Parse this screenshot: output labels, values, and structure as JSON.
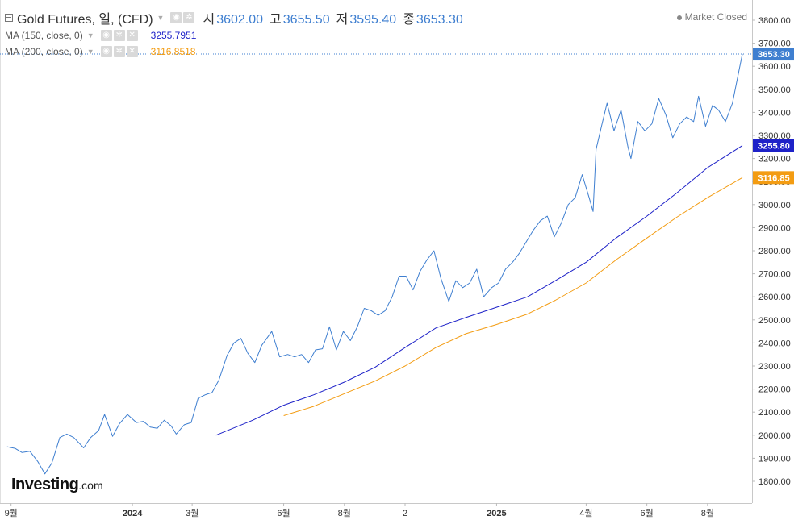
{
  "header": {
    "title": "Gold Futures, 일, (CFD)",
    "ohlc": [
      {
        "label": "시",
        "value": "3602.00"
      },
      {
        "label": "고",
        "value": "3655.50"
      },
      {
        "label": "저",
        "value": "3595.40"
      },
      {
        "label": "종",
        "value": "3653.30"
      }
    ],
    "market_status": "Market Closed",
    "indicators": [
      {
        "label": "MA (150, close, 0)",
        "value": "3255.7951",
        "color": "#1e22c8"
      },
      {
        "label": "MA (200, close, 0)",
        "value": "3116.8518",
        "color": "#f39c12"
      }
    ]
  },
  "brand": {
    "main": "Investing",
    "suffix": ".com"
  },
  "icons": {
    "collapse": "collapse-icon",
    "caret": "caret-down-icon",
    "visibility": "eye-icon",
    "settings": "gear-icon",
    "remove": "close-icon",
    "status": "status-dot-icon"
  },
  "chart_data": {
    "type": "line",
    "ylim": [
      1740,
      3870
    ],
    "y_ticks": [
      1800,
      1900,
      2000,
      2100,
      2200,
      2300,
      2400,
      2500,
      2600,
      2700,
      2800,
      2900,
      3000,
      3100,
      3200,
      3300,
      3400,
      3500,
      3600,
      3700,
      3800
    ],
    "x_ticks": [
      {
        "label": "9월",
        "date": "2023-09-01"
      },
      {
        "label": "2024",
        "date": "2024-01-01"
      },
      {
        "label": "3월",
        "date": "2024-03-01"
      },
      {
        "label": "6월",
        "date": "2024-06-01"
      },
      {
        "label": "8월",
        "date": "2024-08-01"
      },
      {
        "label": "2",
        "date": "2024-10-01"
      },
      {
        "label": "2025",
        "date": "2025-01-01"
      },
      {
        "label": "4월",
        "date": "2025-04-01"
      },
      {
        "label": "6월",
        "date": "2025-06-01"
      },
      {
        "label": "8월",
        "date": "2025-08-01"
      }
    ],
    "price_labels": [
      {
        "value": "3653.30",
        "color": "#3f7fd0"
      },
      {
        "value": "3255.80",
        "color": "#1e22c8"
      },
      {
        "value": "3116.85",
        "color": "#f39c12"
      }
    ],
    "series": [
      {
        "name": "Gold Futures",
        "color": "#3f7fd0",
        "points": [
          [
            "2023-08-28",
            1950
          ],
          [
            "2023-09-05",
            1943
          ],
          [
            "2023-09-12",
            1925
          ],
          [
            "2023-09-20",
            1930
          ],
          [
            "2023-09-28",
            1885
          ],
          [
            "2023-10-05",
            1832
          ],
          [
            "2023-10-12",
            1880
          ],
          [
            "2023-10-20",
            1990
          ],
          [
            "2023-10-27",
            2005
          ],
          [
            "2023-11-03",
            1990
          ],
          [
            "2023-11-13",
            1945
          ],
          [
            "2023-11-20",
            1990
          ],
          [
            "2023-11-28",
            2020
          ],
          [
            "2023-12-04",
            2090
          ],
          [
            "2023-12-12",
            1995
          ],
          [
            "2023-12-19",
            2050
          ],
          [
            "2023-12-27",
            2090
          ],
          [
            "2024-01-05",
            2055
          ],
          [
            "2024-01-12",
            2060
          ],
          [
            "2024-01-19",
            2035
          ],
          [
            "2024-01-26",
            2030
          ],
          [
            "2024-02-02",
            2065
          ],
          [
            "2024-02-09",
            2040
          ],
          [
            "2024-02-14",
            2005
          ],
          [
            "2024-02-22",
            2045
          ],
          [
            "2024-02-29",
            2055
          ],
          [
            "2024-03-07",
            2160
          ],
          [
            "2024-03-14",
            2175
          ],
          [
            "2024-03-21",
            2185
          ],
          [
            "2024-03-28",
            2240
          ],
          [
            "2024-04-05",
            2345
          ],
          [
            "2024-04-12",
            2400
          ],
          [
            "2024-04-19",
            2420
          ],
          [
            "2024-04-26",
            2355
          ],
          [
            "2024-05-03",
            2315
          ],
          [
            "2024-05-10",
            2390
          ],
          [
            "2024-05-20",
            2450
          ],
          [
            "2024-05-28",
            2340
          ],
          [
            "2024-06-05",
            2350
          ],
          [
            "2024-06-12",
            2340
          ],
          [
            "2024-06-19",
            2350
          ],
          [
            "2024-06-26",
            2315
          ],
          [
            "2024-07-03",
            2370
          ],
          [
            "2024-07-10",
            2375
          ],
          [
            "2024-07-17",
            2470
          ],
          [
            "2024-07-24",
            2370
          ],
          [
            "2024-07-31",
            2450
          ],
          [
            "2024-08-07",
            2410
          ],
          [
            "2024-08-14",
            2470
          ],
          [
            "2024-08-21",
            2550
          ],
          [
            "2024-08-28",
            2540
          ],
          [
            "2024-09-04",
            2520
          ],
          [
            "2024-09-11",
            2540
          ],
          [
            "2024-09-18",
            2600
          ],
          [
            "2024-09-25",
            2690
          ],
          [
            "2024-10-02",
            2690
          ],
          [
            "2024-10-09",
            2630
          ],
          [
            "2024-10-16",
            2710
          ],
          [
            "2024-10-23",
            2760
          ],
          [
            "2024-10-30",
            2800
          ],
          [
            "2024-11-06",
            2680
          ],
          [
            "2024-11-14",
            2580
          ],
          [
            "2024-11-21",
            2670
          ],
          [
            "2024-11-28",
            2640
          ],
          [
            "2024-12-05",
            2660
          ],
          [
            "2024-12-12",
            2720
          ],
          [
            "2024-12-19",
            2600
          ],
          [
            "2024-12-27",
            2640
          ],
          [
            "2025-01-03",
            2660
          ],
          [
            "2025-01-10",
            2720
          ],
          [
            "2025-01-17",
            2750
          ],
          [
            "2025-01-24",
            2790
          ],
          [
            "2025-01-31",
            2840
          ],
          [
            "2025-02-07",
            2890
          ],
          [
            "2025-02-14",
            2930
          ],
          [
            "2025-02-21",
            2950
          ],
          [
            "2025-02-28",
            2860
          ],
          [
            "2025-03-07",
            2920
          ],
          [
            "2025-03-14",
            3000
          ],
          [
            "2025-03-21",
            3030
          ],
          [
            "2025-03-28",
            3130
          ],
          [
            "2025-04-04",
            3030
          ],
          [
            "2025-04-08",
            2970
          ],
          [
            "2025-04-11",
            3240
          ],
          [
            "2025-04-17",
            3350
          ],
          [
            "2025-04-22",
            3440
          ],
          [
            "2025-04-29",
            3320
          ],
          [
            "2025-05-06",
            3410
          ],
          [
            "2025-05-13",
            3250
          ],
          [
            "2025-05-16",
            3200
          ],
          [
            "2025-05-23",
            3360
          ],
          [
            "2025-05-30",
            3320
          ],
          [
            "2025-06-06",
            3350
          ],
          [
            "2025-06-13",
            3460
          ],
          [
            "2025-06-20",
            3390
          ],
          [
            "2025-06-27",
            3290
          ],
          [
            "2025-07-04",
            3350
          ],
          [
            "2025-07-11",
            3380
          ],
          [
            "2025-07-18",
            3360
          ],
          [
            "2025-07-23",
            3470
          ],
          [
            "2025-07-30",
            3340
          ],
          [
            "2025-08-06",
            3430
          ],
          [
            "2025-08-12",
            3410
          ],
          [
            "2025-08-19",
            3360
          ],
          [
            "2025-08-26",
            3440
          ],
          [
            "2025-09-02",
            3590
          ],
          [
            "2025-09-05",
            3653
          ]
        ]
      },
      {
        "name": "MA (150, close, 0)",
        "color": "#1e22c8",
        "points": [
          [
            "2024-03-25",
            2000
          ],
          [
            "2024-05-01",
            2065
          ],
          [
            "2024-06-01",
            2130
          ],
          [
            "2024-07-01",
            2175
          ],
          [
            "2024-08-01",
            2230
          ],
          [
            "2024-09-01",
            2295
          ],
          [
            "2024-10-01",
            2380
          ],
          [
            "2024-11-01",
            2465
          ],
          [
            "2024-12-01",
            2510
          ],
          [
            "2025-01-01",
            2555
          ],
          [
            "2025-02-01",
            2600
          ],
          [
            "2025-03-01",
            2670
          ],
          [
            "2025-04-01",
            2750
          ],
          [
            "2025-05-01",
            2855
          ],
          [
            "2025-06-01",
            2950
          ],
          [
            "2025-07-01",
            3050
          ],
          [
            "2025-08-01",
            3160
          ],
          [
            "2025-09-05",
            3256
          ]
        ]
      },
      {
        "name": "MA (200, close, 0)",
        "color": "#f39c12",
        "points": [
          [
            "2024-06-01",
            2085
          ],
          [
            "2024-07-01",
            2125
          ],
          [
            "2024-08-01",
            2180
          ],
          [
            "2024-09-01",
            2235
          ],
          [
            "2024-10-01",
            2300
          ],
          [
            "2024-11-01",
            2380
          ],
          [
            "2024-12-01",
            2440
          ],
          [
            "2025-01-01",
            2480
          ],
          [
            "2025-02-01",
            2525
          ],
          [
            "2025-03-01",
            2585
          ],
          [
            "2025-04-01",
            2660
          ],
          [
            "2025-05-01",
            2760
          ],
          [
            "2025-06-01",
            2855
          ],
          [
            "2025-07-01",
            2945
          ],
          [
            "2025-08-01",
            3030
          ],
          [
            "2025-09-05",
            3117
          ]
        ]
      }
    ]
  }
}
